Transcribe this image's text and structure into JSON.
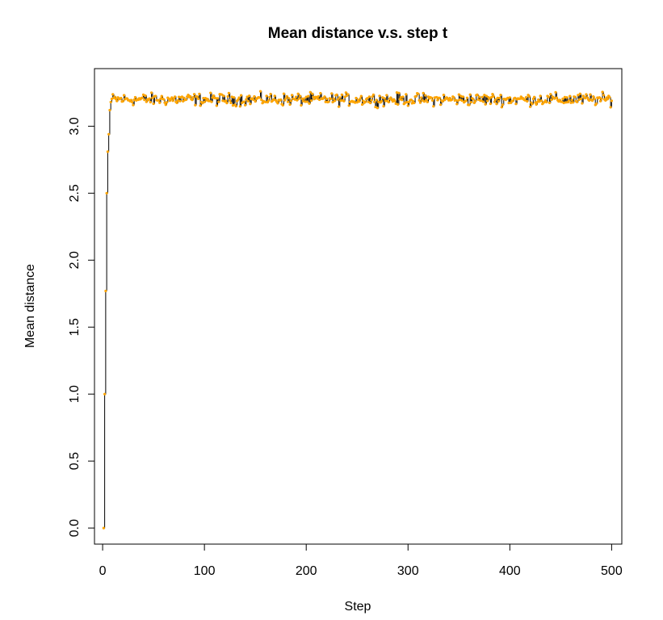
{
  "chart_data": {
    "type": "line",
    "title": "Mean distance v.s. step t",
    "xlabel": "Step",
    "ylabel": "Mean distance",
    "xlim": [
      -8,
      510
    ],
    "ylim": [
      -0.12,
      3.43
    ],
    "x_ticks": [
      0,
      100,
      200,
      300,
      400,
      500
    ],
    "y_ticks": [
      0.0,
      0.5,
      1.0,
      1.5,
      2.0,
      2.5,
      3.0
    ],
    "x_tick_labels": [
      "0",
      "100",
      "200",
      "300",
      "400",
      "500"
    ],
    "y_tick_labels": [
      "0.0",
      "0.5",
      "1.0",
      "1.5",
      "2.0",
      "2.5",
      "3.0"
    ],
    "grid": false,
    "legend": "none",
    "colors": {
      "line": "#000000",
      "points": "#FFA500",
      "background": "#ffffff"
    },
    "series": [
      {
        "x_start": 1,
        "x_end": 500,
        "initial_values": [
          0.0,
          1.0,
          1.77,
          2.5,
          2.81,
          2.94,
          3.12,
          3.18
        ],
        "plateau_mean": 3.2,
        "plateau_range": [
          3.12,
          3.3
        ]
      }
    ]
  }
}
